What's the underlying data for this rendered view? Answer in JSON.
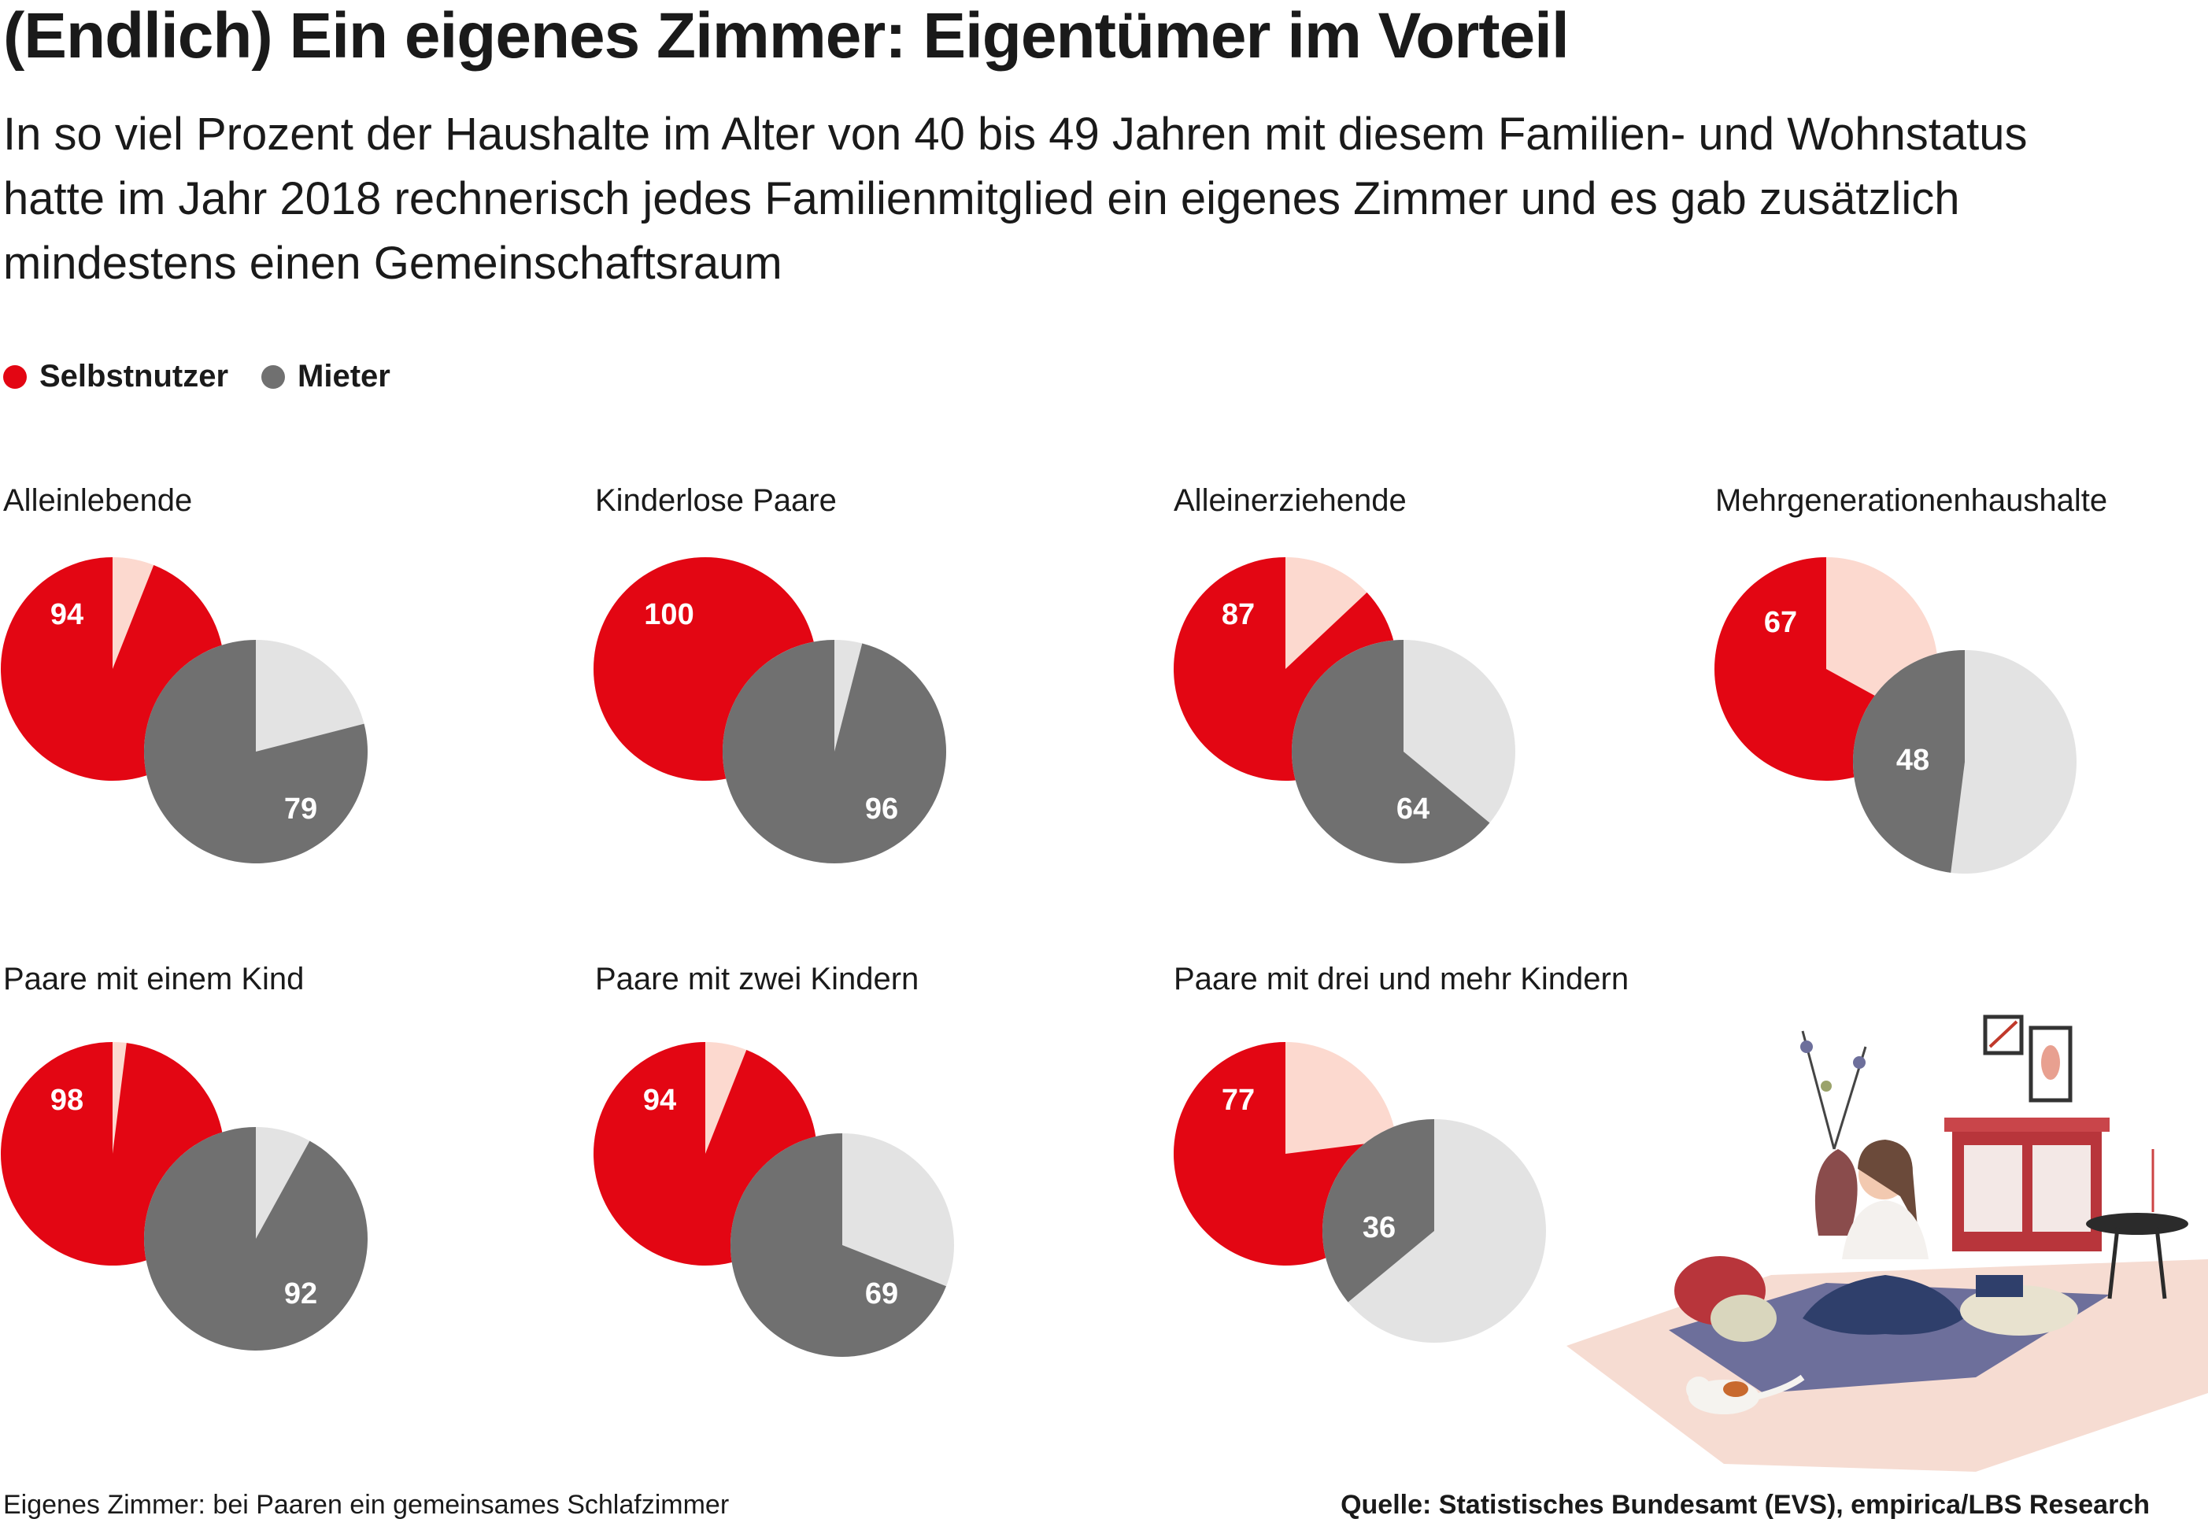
{
  "title": "(Endlich) Ein eigenes Zimmer: Eigentümer im Vorteil",
  "subtitle": "In so viel Prozent der Haushalte im Alter von 40 bis 49 Jahren mit diesem Familien- und Wohnstatus hatte im Jahr 2018 rechnerisch jedes Familienmitglied ein eigenes Zimmer und es gab zusätzlich mindestens einen Gemeinschaftsraum",
  "legend": [
    {
      "label": "Selbstnutzer",
      "color": "#e30613"
    },
    {
      "label": "Mieter",
      "color": "#707070"
    }
  ],
  "colors": {
    "owner": "#e30613",
    "owner_rest": "#fcd9cf",
    "renter": "#707070",
    "renter_rest": "#e3e3e3"
  },
  "chart_data": {
    "type": "pie",
    "unit": "%",
    "panels": [
      {
        "name": "Alleinlebende",
        "selbstnutzer": 94,
        "mieter": 79
      },
      {
        "name": "Kinderlose Paare",
        "selbstnutzer": 100,
        "mieter": 96
      },
      {
        "name": "Alleinerziehende",
        "selbstnutzer": 87,
        "mieter": 64
      },
      {
        "name": "Mehrgenerationenhaushalte",
        "selbstnutzer": 67,
        "mieter": 48
      },
      {
        "name": "Paare mit einem Kind",
        "selbstnutzer": 98,
        "mieter": 92
      },
      {
        "name": "Paare mit zwei Kindern",
        "selbstnutzer": 94,
        "mieter": 69
      },
      {
        "name": "Paare mit drei und mehr Kindern",
        "selbstnutzer": 77,
        "mieter": 36
      }
    ]
  },
  "footnote": "Eigenes Zimmer: bei Paaren ein gemeinsames Schlafzimmer",
  "source": "Quelle: Statistisches Bundesamt (EVS), empirica/LBS Research",
  "illustration": {
    "icon": "woman-meditating-illustration"
  }
}
